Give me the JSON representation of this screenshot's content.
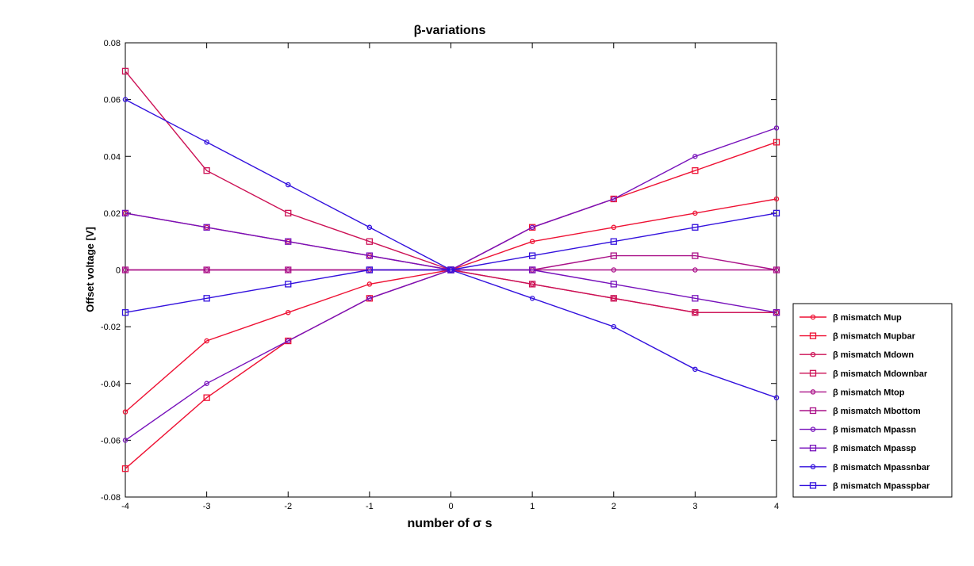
{
  "chart_data": {
    "type": "line",
    "title": "β-variations",
    "xlabel": "number of σ s",
    "ylabel": "Offset voltage [V]",
    "xlim": [
      -4,
      4
    ],
    "ylim": [
      -0.08,
      0.08
    ],
    "x": [
      -4,
      -3,
      -2,
      -1,
      0,
      1,
      2,
      3,
      4
    ],
    "x_ticks": [
      "-4",
      "-3",
      "-2",
      "-1",
      "0",
      "1",
      "2",
      "3",
      "4"
    ],
    "y_ticks": [
      {
        "value": 0.08,
        "label": "0.08"
      },
      {
        "value": 0.06,
        "label": "0.06"
      },
      {
        "value": 0.04,
        "label": "0.04"
      },
      {
        "value": 0.02,
        "label": "0.02"
      },
      {
        "value": 0,
        "label": "0"
      },
      {
        "value": -0.02,
        "label": "-0.02"
      },
      {
        "value": -0.04,
        "label": "-0.04"
      },
      {
        "value": -0.06,
        "label": "-0.06"
      },
      {
        "value": -0.08,
        "label": "-0.08"
      }
    ],
    "grid": false,
    "legend_position": "outside-right-bottom",
    "series": [
      {
        "name": "β mismatch Mup",
        "marker": "circle",
        "color": "#ee1133",
        "values": [
          -0.05,
          -0.025,
          -0.015,
          -0.005,
          0,
          0.01,
          0.015,
          0.02,
          0.025
        ]
      },
      {
        "name": "β mismatch Mupbar",
        "marker": "square",
        "color": "#ee1133",
        "values": [
          -0.07,
          -0.045,
          -0.025,
          -0.01,
          0,
          0.015,
          0.025,
          0.035,
          0.045
        ]
      },
      {
        "name": "β mismatch Mdown",
        "marker": "circle",
        "color": "#cc1155",
        "values": [
          0.02,
          0.015,
          0.01,
          0.005,
          0,
          -0.005,
          -0.01,
          -0.015,
          -0.015
        ]
      },
      {
        "name": "β mismatch Mdownbar",
        "marker": "square",
        "color": "#cc1155",
        "values": [
          0.07,
          0.035,
          0.02,
          0.01,
          0,
          -0.005,
          -0.01,
          -0.015,
          -0.015
        ]
      },
      {
        "name": "β mismatch Mtop",
        "marker": "circle",
        "color": "#aa1188",
        "values": [
          0,
          0,
          0,
          0,
          0,
          0,
          0,
          0,
          0
        ]
      },
      {
        "name": "β mismatch Mbottom",
        "marker": "square",
        "color": "#aa1188",
        "values": [
          0,
          0,
          0,
          0,
          0,
          0,
          0.005,
          0.005,
          0
        ]
      },
      {
        "name": "β mismatch Mpassn",
        "marker": "circle",
        "color": "#7711bb",
        "values": [
          -0.06,
          -0.04,
          -0.025,
          -0.01,
          0,
          0.015,
          0.025,
          0.04,
          0.05
        ]
      },
      {
        "name": "β mismatch Mpassp",
        "marker": "square",
        "color": "#7711bb",
        "values": [
          0.02,
          0.015,
          0.01,
          0.005,
          0,
          0,
          -0.005,
          -0.01,
          -0.015
        ]
      },
      {
        "name": "β mismatch Mpassnbar",
        "marker": "circle",
        "color": "#3311dd",
        "values": [
          0.06,
          0.045,
          0.03,
          0.015,
          0,
          -0.01,
          -0.02,
          -0.035,
          -0.045
        ]
      },
      {
        "name": "β mismatch Mpasspbar",
        "marker": "square",
        "color": "#3311dd",
        "values": [
          -0.015,
          -0.01,
          -0.005,
          0,
          0,
          0.005,
          0.01,
          0.015,
          0.02
        ]
      }
    ]
  }
}
